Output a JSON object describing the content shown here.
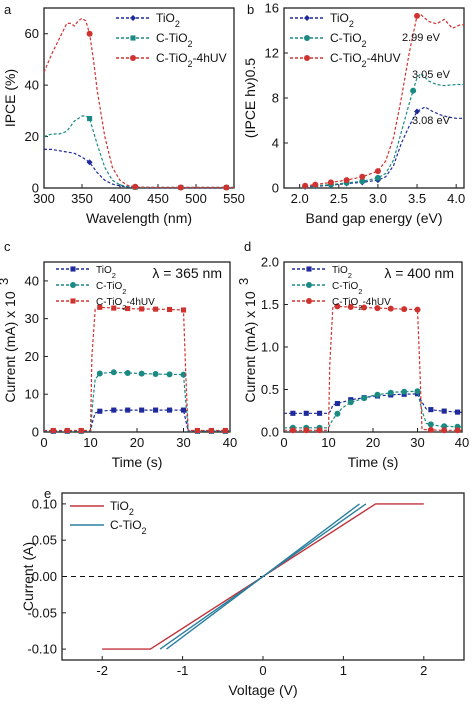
{
  "colors": {
    "blue": "#1f2a9c",
    "green": "#1a8a83",
    "red": "#d0332f",
    "red_e": "#c0323a",
    "teal_e": "#2a7f9e",
    "axis": "#222222"
  },
  "chart_data": [
    {
      "panel": "a",
      "type": "line",
      "xlabel": "Wavelength (nm)",
      "ylabel": "IPCE (%)",
      "xlim": [
        300,
        550
      ],
      "ylim": [
        0,
        70
      ],
      "xticks": [
        "300",
        "350",
        "400",
        "450",
        "500",
        "550"
      ],
      "yticks": [
        "0",
        "20",
        "40",
        "60"
      ],
      "legend_position": "top-right",
      "series": [
        {
          "name": "TiO2",
          "color": "blue",
          "marker": "diamond",
          "x": [
            300,
            310,
            320,
            330,
            340,
            350,
            360,
            370,
            380,
            390,
            400,
            410,
            420,
            430,
            450,
            480,
            500,
            520,
            550
          ],
          "y": [
            15,
            15,
            14.5,
            14,
            13.5,
            12,
            10,
            6,
            3,
            1.5,
            0.8,
            0.4,
            0.3,
            0.2,
            0.2,
            0.2,
            0.2,
            0.2,
            0.2
          ],
          "markers_x": [
            360,
            420,
            480,
            540
          ]
        },
        {
          "name": "C-TiO2",
          "color": "green",
          "marker": "square",
          "x": [
            300,
            310,
            320,
            330,
            340,
            350,
            355,
            360,
            370,
            380,
            390,
            400,
            410,
            420,
            430,
            450,
            480,
            500,
            520,
            550
          ],
          "y": [
            20,
            21,
            21,
            22,
            26,
            28,
            28,
            27,
            17,
            8,
            3,
            1.2,
            0.5,
            0.3,
            0.2,
            0.2,
            0.2,
            0.2,
            0.2,
            0.2
          ],
          "markers_x": [
            360,
            420,
            480,
            540
          ]
        },
        {
          "name": "C-TiO2-4hUV",
          "color": "red",
          "marker": "circle",
          "x": [
            300,
            310,
            320,
            330,
            335,
            340,
            345,
            350,
            355,
            360,
            365,
            370,
            380,
            390,
            400,
            410,
            420,
            430,
            450,
            480,
            500,
            520,
            550
          ],
          "y": [
            45,
            52,
            58,
            64,
            64,
            63,
            65,
            66,
            65,
            60,
            50,
            38,
            20,
            8,
            3,
            1,
            0.5,
            0.3,
            0.2,
            0.2,
            0.2,
            0.2,
            0.2
          ],
          "markers_x": [
            360,
            420,
            480,
            540
          ]
        }
      ]
    },
    {
      "panel": "b",
      "type": "line",
      "xlabel": "Band gap energy (eV)",
      "ylabel": "(IPCE hν)0.5",
      "xlim": [
        1.8,
        4.1
      ],
      "ylim": [
        0,
        16
      ],
      "xticks": [
        "2.0",
        "2.5",
        "3.0",
        "3.5",
        "4.0"
      ],
      "yticks": [
        "0",
        "4",
        "8",
        "12",
        "16"
      ],
      "legend_position": "top-left",
      "annotations": [
        "2.99 eV",
        "3.05 eV",
        "3.08 eV"
      ],
      "series": [
        {
          "name": "TiO2",
          "color": "blue",
          "marker": "diamond",
          "x": [
            2.07,
            2.2,
            2.4,
            2.6,
            2.8,
            3.0,
            3.1,
            3.2,
            3.3,
            3.4,
            3.5,
            3.6,
            3.7,
            3.8,
            3.9,
            4.0,
            4.1
          ],
          "y": [
            0.1,
            0.15,
            0.25,
            0.4,
            0.5,
            0.7,
            1.0,
            2.0,
            4.0,
            5.5,
            6.8,
            7.2,
            6.8,
            6.5,
            6.3,
            6.2,
            6.2
          ],
          "markers_x": [
            2.07,
            2.2,
            2.4,
            2.6,
            2.8,
            3.0,
            3.5
          ]
        },
        {
          "name": "C-TiO2",
          "color": "green",
          "marker": "circle",
          "x": [
            2.07,
            2.2,
            2.4,
            2.6,
            2.8,
            3.0,
            3.1,
            3.2,
            3.3,
            3.4,
            3.5,
            3.55,
            3.65,
            3.75,
            3.85,
            4.0,
            4.1
          ],
          "y": [
            0.15,
            0.2,
            0.3,
            0.45,
            0.6,
            0.9,
            1.3,
            2.5,
            5.0,
            7.5,
            9.8,
            10.2,
            9.5,
            9.2,
            9.1,
            9.2,
            9.2
          ],
          "markers_x": [
            2.07,
            2.2,
            2.4,
            2.6,
            2.8,
            3.0,
            3.45
          ]
        },
        {
          "name": "C-TiO2-4hUV",
          "color": "red",
          "marker": "circle",
          "x": [
            2.07,
            2.2,
            2.4,
            2.6,
            2.8,
            3.0,
            3.1,
            3.2,
            3.3,
            3.4,
            3.5,
            3.55,
            3.65,
            3.75,
            3.85,
            3.95,
            4.05,
            4.1
          ],
          "y": [
            0.2,
            0.3,
            0.5,
            0.7,
            1.0,
            1.5,
            2.4,
            4.5,
            8.0,
            12.0,
            15.3,
            15.4,
            14.8,
            14.6,
            15.0,
            14.2,
            14.5,
            14.5
          ],
          "markers_x": [
            2.07,
            2.2,
            2.4,
            2.6,
            2.8,
            3.0,
            3.5
          ]
        }
      ]
    },
    {
      "panel": "c",
      "type": "line",
      "xlabel": "Time (s)",
      "ylabel": "Current (mA) x 10",
      "ylabel_sup": "3",
      "xlim": [
        0,
        40
      ],
      "ylim": [
        0,
        45
      ],
      "xticks": [
        "0",
        "10",
        "20",
        "30",
        "40"
      ],
      "yticks": [
        "0",
        "10",
        "20",
        "30",
        "40"
      ],
      "annotation": "λ = 365 nm",
      "legend_position": "top-left",
      "series": [
        {
          "name": "TiO2",
          "color": "blue",
          "marker": "square",
          "x": [
            0,
            5,
            10,
            10.5,
            11,
            12,
            15,
            20,
            25,
            30,
            30.5,
            31,
            35,
            40
          ],
          "y": [
            0.2,
            0.2,
            0.2,
            3,
            5,
            5.5,
            5.8,
            5.8,
            5.8,
            5.8,
            3,
            0.2,
            0.2,
            0.2
          ],
          "markers_x": [
            2,
            5,
            8,
            12,
            15,
            18,
            21,
            24,
            27,
            30,
            33,
            36,
            39
          ]
        },
        {
          "name": "C-TiO2",
          "color": "green",
          "marker": "circle",
          "x": [
            0,
            5,
            10,
            10.5,
            11,
            12,
            15,
            20,
            25,
            30,
            30.5,
            31,
            35,
            40
          ],
          "y": [
            0.3,
            0.3,
            0.3,
            8,
            14,
            15.5,
            15.8,
            15.5,
            15.3,
            15.2,
            8,
            0.3,
            0.3,
            0.3
          ],
          "markers_x": [
            2,
            5,
            8,
            12,
            15,
            18,
            21,
            24,
            27,
            30,
            33,
            36,
            39
          ]
        },
        {
          "name": "C-TiO2-4hUV",
          "color": "red",
          "marker": "square",
          "x": [
            0,
            5,
            10,
            10.3,
            11,
            12,
            15,
            20,
            25,
            30,
            30.5,
            31,
            35,
            40
          ],
          "y": [
            0.4,
            0.4,
            0.4,
            20,
            32.5,
            33,
            32.8,
            32.6,
            32.5,
            32.3,
            15,
            0.4,
            0.4,
            0.4
          ],
          "markers_x": [
            2,
            5,
            8,
            12,
            15,
            18,
            21,
            24,
            27,
            30,
            33,
            36,
            39
          ]
        }
      ]
    },
    {
      "panel": "d",
      "type": "line",
      "xlabel": "Time (s)",
      "ylabel": "Current (mA) x 10",
      "ylabel_sup": "3",
      "xlim": [
        0,
        40
      ],
      "ylim": [
        0,
        2.0
      ],
      "xticks": [
        "0",
        "10",
        "20",
        "30",
        "40"
      ],
      "yticks": [
        "0.0",
        "0.5",
        "1.0",
        "1.5",
        "2.0"
      ],
      "annotation": "λ = 400 nm",
      "legend_position": "top-left",
      "series": [
        {
          "name": "TiO2",
          "color": "blue",
          "marker": "square",
          "x": [
            0,
            5,
            10,
            10.5,
            11,
            13,
            15,
            20,
            25,
            30,
            31,
            32,
            35,
            40
          ],
          "y": [
            0.22,
            0.22,
            0.22,
            0.25,
            0.32,
            0.35,
            0.38,
            0.42,
            0.44,
            0.45,
            0.35,
            0.27,
            0.25,
            0.23
          ],
          "markers_x": [
            2,
            5,
            8,
            12,
            15,
            18,
            21,
            24,
            27,
            30,
            33,
            36,
            39
          ]
        },
        {
          "name": "C-TiO2",
          "color": "green",
          "marker": "circle",
          "x": [
            0,
            5,
            10,
            10.5,
            11,
            13,
            15,
            20,
            25,
            30,
            31,
            32,
            35,
            40
          ],
          "y": [
            0.05,
            0.05,
            0.05,
            0.1,
            0.15,
            0.28,
            0.35,
            0.43,
            0.47,
            0.48,
            0.25,
            0.1,
            0.07,
            0.06
          ],
          "markers_x": [
            2,
            5,
            8,
            12,
            15,
            18,
            21,
            24,
            27,
            30,
            33,
            36,
            39
          ]
        },
        {
          "name": "C-TiO2-4hUV",
          "color": "red",
          "marker": "circle",
          "x": [
            0,
            5,
            10,
            10.3,
            11,
            15,
            20,
            25,
            30,
            30.5,
            31,
            35,
            40
          ],
          "y": [
            0.02,
            0.02,
            0.02,
            0.8,
            1.48,
            1.47,
            1.46,
            1.45,
            1.44,
            0.8,
            0.03,
            0.02,
            0.02
          ],
          "markers_x": [
            2,
            5,
            8,
            12,
            15,
            18,
            21,
            24,
            27,
            30,
            33,
            36,
            39
          ]
        }
      ]
    },
    {
      "panel": "e",
      "type": "line",
      "xlabel": "Voltage (V)",
      "ylabel": "Current (A)",
      "xlim": [
        -2.5,
        2.5
      ],
      "ylim": [
        -0.115,
        0.115
      ],
      "xticks": [
        "-2",
        "-1",
        "0",
        "1",
        "2"
      ],
      "xtick_values": [
        -2,
        -1,
        0,
        1,
        2
      ],
      "yticks": [
        "-0.10",
        "-0.05",
        "0.00",
        "0.05",
        "0.10"
      ],
      "ytick_values": [
        -0.1,
        -0.05,
        0,
        0.05,
        0.1
      ],
      "reference_line_y": 0,
      "legend_position": "top-left",
      "series": [
        {
          "name": "TiO2",
          "color": "red_e",
          "x": [
            -2,
            -1.4,
            1.4,
            2
          ],
          "y": [
            -0.1,
            -0.1,
            0.1,
            0.1
          ]
        },
        {
          "name": "C-TiO2",
          "color": "teal_e",
          "x": [
            -1.28,
            1.28
          ],
          "y": [
            -0.1,
            0.1
          ]
        },
        {
          "name": "",
          "color": "teal_e",
          "x": [
            -1.2,
            1.2
          ],
          "y": [
            -0.1,
            0.1
          ]
        }
      ]
    }
  ],
  "panel_letters": [
    "a",
    "b",
    "c",
    "d",
    "e"
  ]
}
